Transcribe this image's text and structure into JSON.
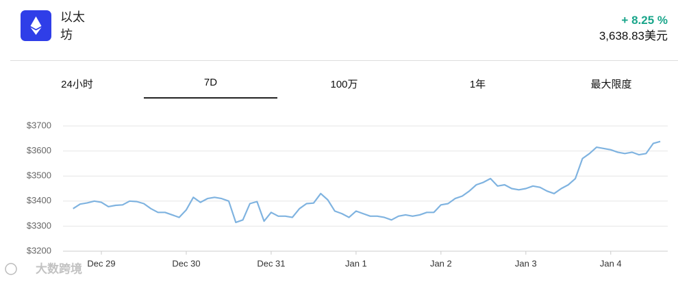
{
  "header": {
    "name": "以太坊",
    "change": "+ 8.25 %",
    "price": "3,638.83美元"
  },
  "tabs": {
    "items": [
      "24小时",
      "7D",
      "100万",
      "1年",
      "最大限度"
    ],
    "active": 1
  },
  "watermark": "大数跨境",
  "chart_data": {
    "type": "line",
    "categories": [
      null,
      null,
      null,
      null,
      "Dec 29",
      null,
      null,
      null,
      null,
      null,
      null,
      null,
      null,
      null,
      null,
      null,
      "Dec 30",
      null,
      null,
      null,
      null,
      null,
      null,
      null,
      null,
      null,
      null,
      null,
      "Dec 31",
      null,
      null,
      null,
      null,
      null,
      null,
      null,
      null,
      null,
      null,
      null,
      "Jan 1",
      null,
      null,
      null,
      null,
      null,
      null,
      null,
      null,
      null,
      null,
      null,
      "Jan 2",
      null,
      null,
      null,
      null,
      null,
      null,
      null,
      null,
      null,
      null,
      null,
      "Jan 3",
      null,
      null,
      null,
      null,
      null,
      null,
      null,
      null,
      null,
      null,
      null,
      "Jan 4",
      null,
      null,
      null,
      null,
      null,
      null,
      null
    ],
    "series": [
      {
        "color": "#7fb3e0",
        "values": [
          3370,
          3388,
          3393,
          3400,
          3395,
          3378,
          3383,
          3385,
          3400,
          3398,
          3390,
          3370,
          3355,
          3355,
          3345,
          3335,
          3365,
          3415,
          3395,
          3410,
          3415,
          3410,
          3400,
          3315,
          3325,
          3390,
          3398,
          3320,
          3355,
          3340,
          3340,
          3335,
          3370,
          3390,
          3392,
          3430,
          3405,
          3360,
          3350,
          3335,
          3360,
          3350,
          3340,
          3340,
          3335,
          3325,
          3340,
          3345,
          3340,
          3345,
          3355,
          3355,
          3385,
          3390,
          3410,
          3420,
          3440,
          3465,
          3475,
          3490,
          3460,
          3465,
          3450,
          3445,
          3450,
          3460,
          3455,
          3440,
          3430,
          3450,
          3465,
          3490,
          3570,
          3590,
          3615,
          3610,
          3605,
          3595,
          3590,
          3595,
          3585,
          3590,
          3630,
          3638
        ]
      }
    ],
    "ylim": [
      3200,
      3700
    ],
    "yticks": [
      {
        "value": 3200,
        "label": "$3200"
      },
      {
        "value": 3300,
        "label": "$3300"
      },
      {
        "value": 3400,
        "label": "$3400"
      },
      {
        "value": 3500,
        "label": "$3500"
      },
      {
        "value": 3600,
        "label": "$3600"
      },
      {
        "value": 3700,
        "label": "$3700"
      }
    ],
    "grid": true
  }
}
